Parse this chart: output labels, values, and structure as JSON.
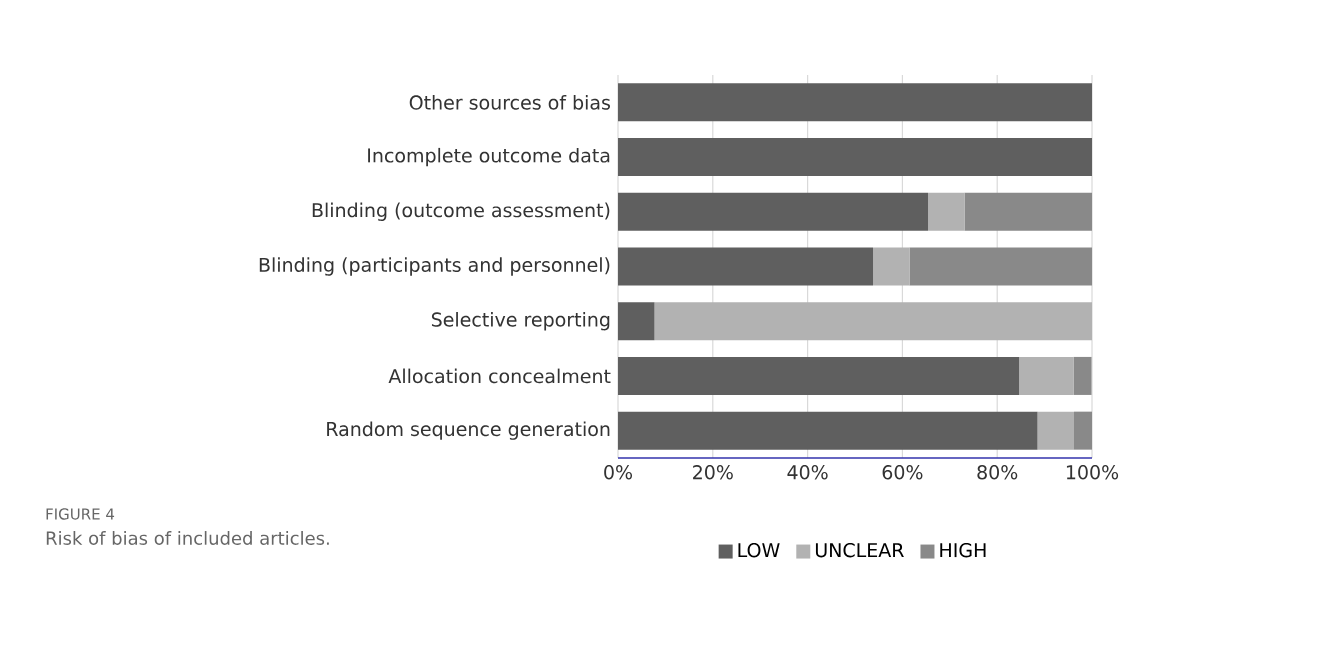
{
  "chart_data": {
    "type": "bar",
    "orientation": "horizontal",
    "stacked": true,
    "categories": [
      "Other sources of bias",
      "Incomplete outcome data",
      "Blinding (outcome assessment)",
      "Blinding (participants and personnel)",
      "Selective reporting",
      "Allocation concealment",
      "Random sequence generation"
    ],
    "series": [
      {
        "name": "LOW",
        "color": "#5f5f5f",
        "values": [
          100,
          100,
          65.4,
          53.8,
          7.7,
          84.6,
          88.5
        ]
      },
      {
        "name": "UNCLEAR",
        "color": "#b2b2b2",
        "values": [
          0,
          0,
          7.7,
          7.7,
          92.3,
          11.5,
          7.7
        ]
      },
      {
        "name": "HIGH",
        "color": "#898989",
        "values": [
          0,
          0,
          26.9,
          38.5,
          0,
          3.8,
          3.8
        ]
      }
    ],
    "xlim": [
      0,
      100
    ],
    "xticks": [
      {
        "value": 0,
        "label": "0%"
      },
      {
        "value": 20,
        "label": "20%"
      },
      {
        "value": 40,
        "label": "40%"
      },
      {
        "value": 60,
        "label": "60%"
      },
      {
        "value": 80,
        "label": "80%"
      },
      {
        "value": 100,
        "label": "100%"
      }
    ],
    "grid": "x",
    "legend": "bottom",
    "annotations": [
      "FIGURE 4",
      "Risk of bias of included articles."
    ]
  }
}
